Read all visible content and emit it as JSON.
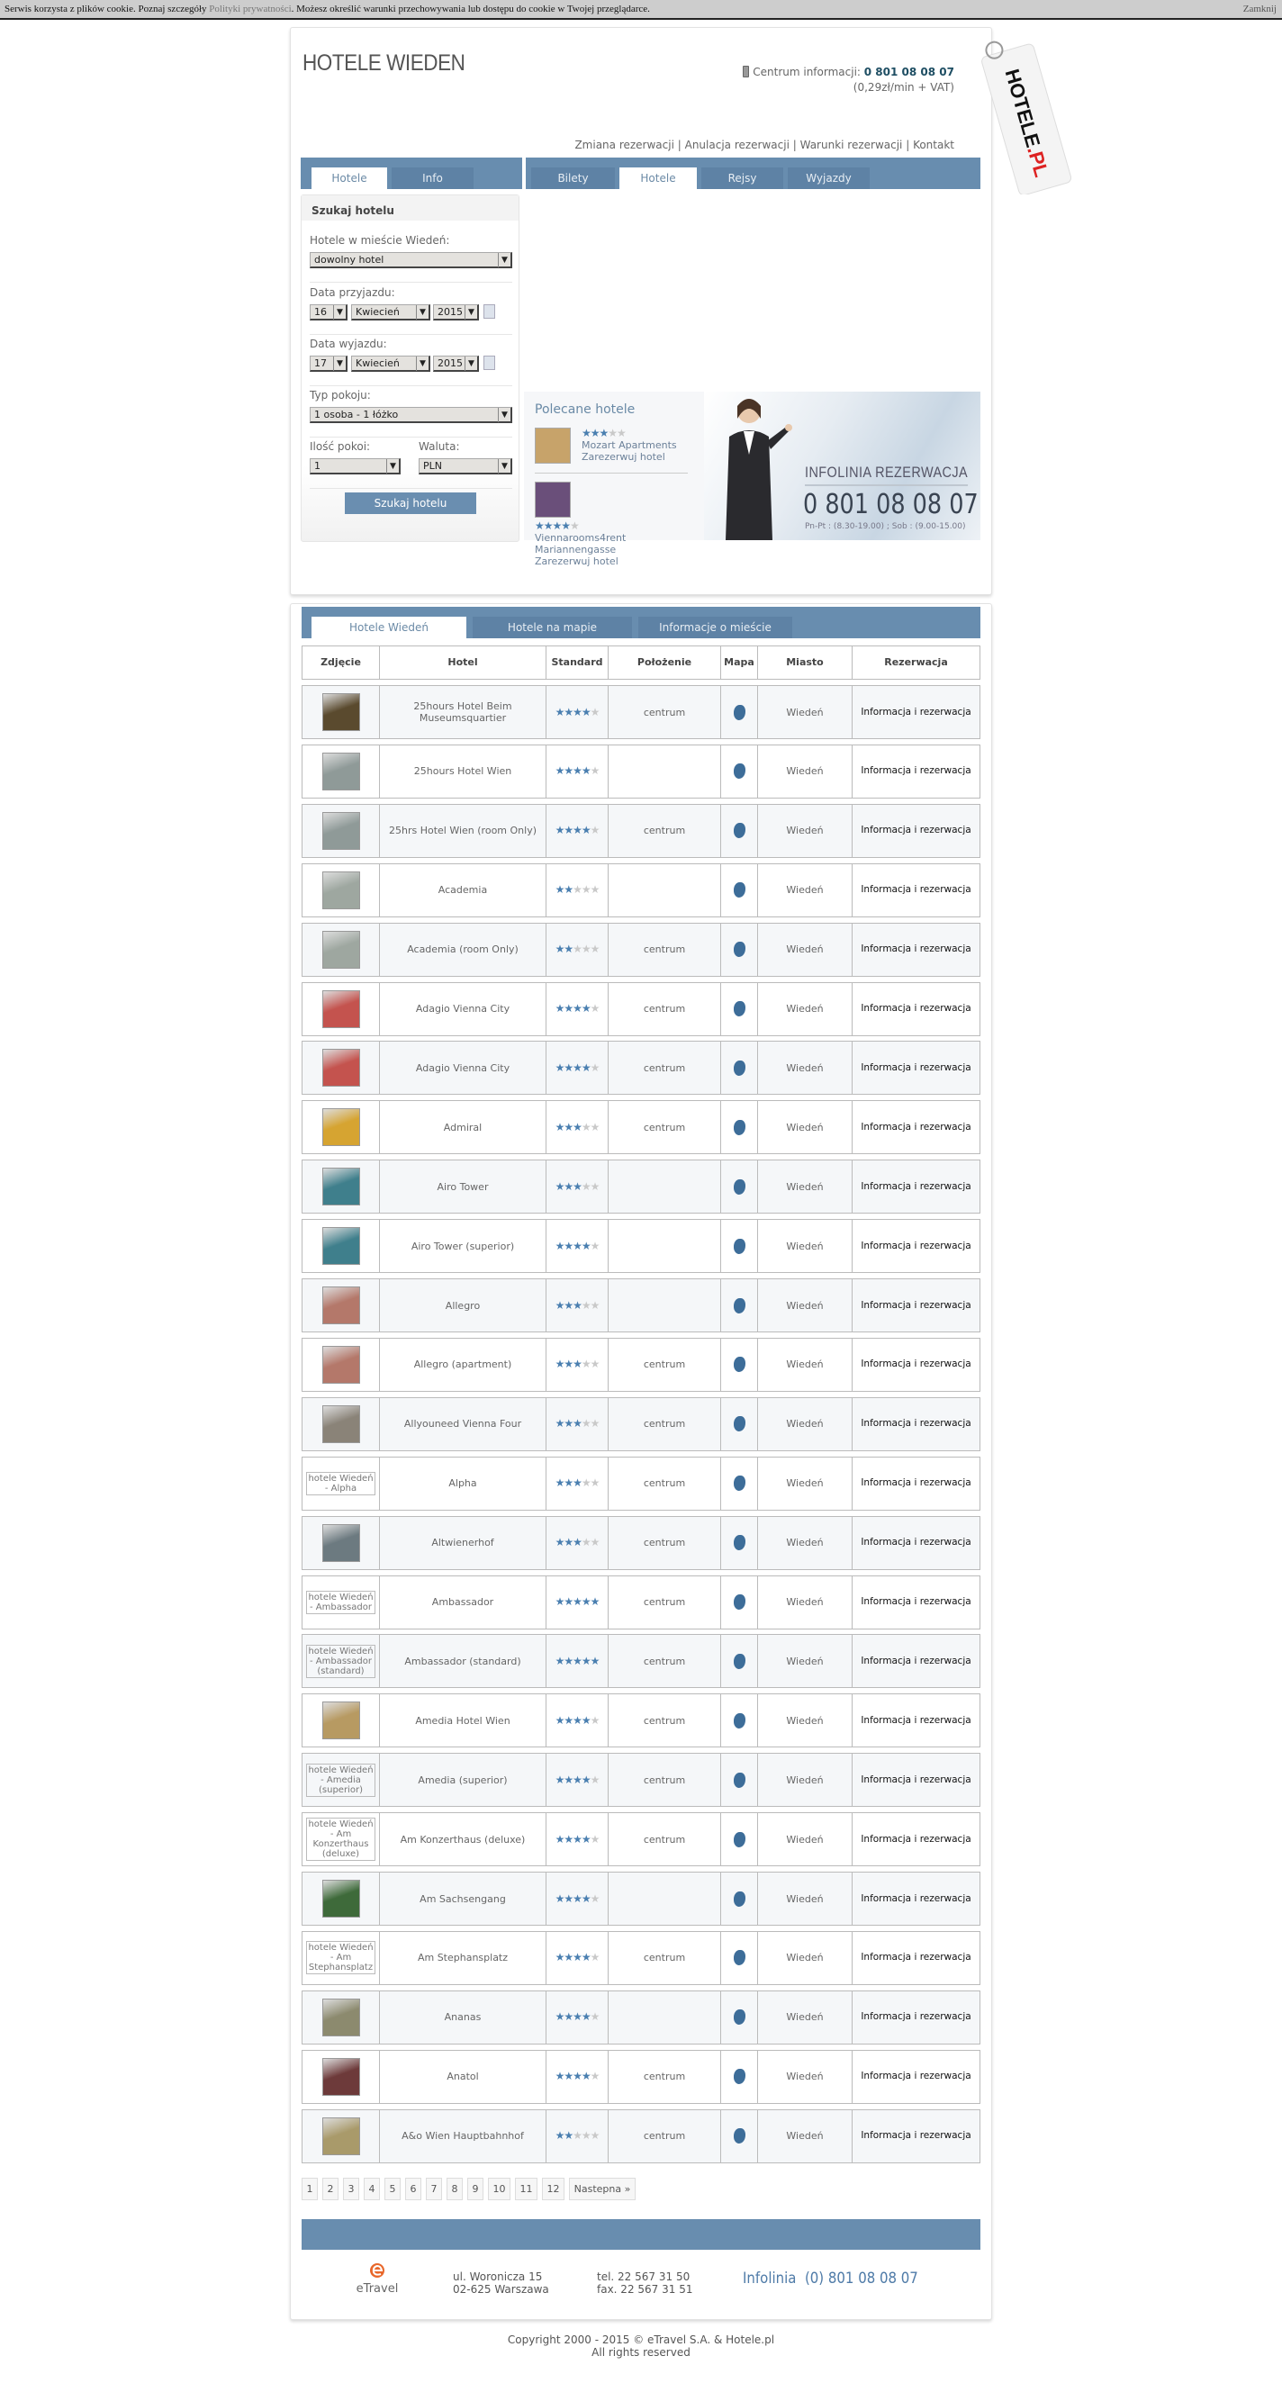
{
  "cookie": {
    "text_before": "Serwis korzysta z plików cookie. Poznaj szczegóły ",
    "link": "Polityki prywatności",
    "text_after": ". Możesz określić warunki przechowywania lub dostępu do cookie w Twojej przeglądarce.",
    "close": "Zamknij"
  },
  "header": {
    "title": "HOTELE WIEDEN",
    "info_label": "Centrum informacji:",
    "info_phone": "0 801 08 08 07",
    "info_price": "(0,29zł/min + VAT)",
    "logo_text": "HOTELE.PL",
    "icon": "phone-icon",
    "links": [
      "Zmiana rezerwacji",
      "Anulacja rezerwacji",
      "Warunki rezerwacji",
      "Kontakt"
    ]
  },
  "left_tabs": [
    {
      "label": "Hotele",
      "active": true
    },
    {
      "label": "Info",
      "active": false
    }
  ],
  "right_tabs": [
    {
      "label": "Bilety",
      "active": false
    },
    {
      "label": "Hotele",
      "active": true
    },
    {
      "label": "Rejsy",
      "active": false
    },
    {
      "label": "Wyjazdy",
      "active": false
    }
  ],
  "search": {
    "title": "Szukaj hotelu",
    "city_label": "Hotele w mieście Wiedeń:",
    "hotel_value": "dowolny hotel",
    "arrival_label": "Data przyjazdu:",
    "arrival": {
      "day": "16",
      "month": "Kwiecień",
      "year": "2015"
    },
    "departure_label": "Data wyjazdu:",
    "departure": {
      "day": "17",
      "month": "Kwiecień",
      "year": "2015"
    },
    "room_label": "Typ pokoju:",
    "room_value": "1 osoba - 1 łóżko",
    "rooms_label": "Ilość pokoi:",
    "rooms_value": "1",
    "currency_label": "Waluta:",
    "currency_value": "PLN",
    "button": "Szukaj hotelu"
  },
  "recommended": {
    "title": "Polecane hotele",
    "items": [
      {
        "stars": 3,
        "name": "Mozart Apartments",
        "link": "Zarezerwuj hotel"
      },
      {
        "stars": 4,
        "name": "Viennarooms4rent Mariannengasse",
        "link": "Zarezerwuj hotel"
      }
    ]
  },
  "banner": {
    "title": "INFOLINIA REZERWACJA",
    "phone": "0 801 08 08 07",
    "hours": "Pn-Pt : (8.30-19.00) ;  Sob : (9.00-15.00)"
  },
  "list_tabs": [
    {
      "label": "Hotele Wiedeń",
      "active": true
    },
    {
      "label": "Hotele na mapie",
      "active": false
    },
    {
      "label": "Informacje o mieście",
      "active": false
    }
  ],
  "table": {
    "headers": [
      "Zdjęcie",
      "Hotel",
      "Standard",
      "Położenie",
      "Mapa",
      "Miasto",
      "Rezerwacja"
    ],
    "reserve_label": "Informacja i rezerwacja",
    "city": "Wiedeń",
    "star_color": "#4a7fb0",
    "map_icon": "map-pin-icon",
    "rows": [
      {
        "name": "25hours Hotel Beim Museumsquartier",
        "stars": 4,
        "location": "centrum",
        "thumb": "#5a4a2e"
      },
      {
        "name": "25hours Hotel Wien",
        "stars": 4,
        "location": "",
        "thumb": "#8f9a98"
      },
      {
        "name": "25hrs Hotel Wien (room Only)",
        "stars": 4,
        "location": "centrum",
        "thumb": "#8f9a98"
      },
      {
        "name": "Academia",
        "stars": 2,
        "location": "",
        "thumb": "#9ea7a0"
      },
      {
        "name": "Academia (room Only)",
        "stars": 2,
        "location": "centrum",
        "thumb": "#9ea7a0"
      },
      {
        "name": "Adagio Vienna City",
        "stars": 4,
        "location": "centrum",
        "thumb": "#c4534e"
      },
      {
        "name": "Adagio Vienna City",
        "stars": 4,
        "location": "centrum",
        "thumb": "#c4534e"
      },
      {
        "name": "Admiral",
        "stars": 3,
        "location": "centrum",
        "thumb": "#d6a431"
      },
      {
        "name": "Airo Tower",
        "stars": 3,
        "location": "",
        "thumb": "#3f7f8c"
      },
      {
        "name": "Airo Tower (superior)",
        "stars": 4,
        "location": "",
        "thumb": "#3f7f8c"
      },
      {
        "name": "Allegro",
        "stars": 3,
        "location": "",
        "thumb": "#b4786a"
      },
      {
        "name": "Allegro (apartment)",
        "stars": 3,
        "location": "centrum",
        "thumb": "#b4786a"
      },
      {
        "name": "Allyouneed Vienna Four",
        "stars": 3,
        "location": "centrum",
        "thumb": "#8a8378"
      },
      {
        "name": "Alpha",
        "stars": 3,
        "location": "centrum",
        "alt": "hotele Wiedeń - Alpha"
      },
      {
        "name": "Altwienerhof",
        "stars": 3,
        "location": "centrum",
        "thumb": "#6c7a80"
      },
      {
        "name": "Ambassador",
        "stars": 5,
        "location": "centrum",
        "alt": "hotele Wiedeń - Ambassador"
      },
      {
        "name": "Ambassador (standard)",
        "stars": 5,
        "location": "centrum",
        "alt": "hotele Wiedeń - Ambassador (standard)"
      },
      {
        "name": "Amedia Hotel Wien",
        "stars": 4,
        "location": "centrum",
        "thumb": "#b79a62"
      },
      {
        "name": "Amedia (superior)",
        "stars": 4,
        "location": "centrum",
        "alt": "hotele Wiedeń - Amedia (superior)"
      },
      {
        "name": "Am Konzerthaus (deluxe)",
        "stars": 4,
        "location": "centrum",
        "alt": "hotele Wiedeń - Am Konzerthaus (deluxe)"
      },
      {
        "name": "Am Sachsengang",
        "stars": 4,
        "location": "",
        "thumb": "#3e6a3a"
      },
      {
        "name": "Am Stephansplatz",
        "stars": 4,
        "location": "centrum",
        "alt": "hotele Wiedeń - Am Stephansplatz"
      },
      {
        "name": "Ananas",
        "stars": 4,
        "location": "",
        "thumb": "#8c8a6e"
      },
      {
        "name": "Anatol",
        "stars": 4,
        "location": "centrum",
        "thumb": "#6d3a3a"
      },
      {
        "name": "A&o Wien Hauptbahnhof",
        "stars": 2,
        "location": "centrum",
        "thumb": "#a99a6a"
      }
    ]
  },
  "pagination": {
    "pages": [
      "1",
      "2",
      "3",
      "4",
      "5",
      "6",
      "7",
      "8",
      "9",
      "10",
      "11",
      "12"
    ],
    "next": "Nastepna »"
  },
  "footer": {
    "logo": "eTravel",
    "address1": "ul. Woronicza 15",
    "address2": "02-625 Warszawa",
    "tel": "tel. 22 567 31 50",
    "fax": "fax. 22 567 31 51",
    "infolinia": "Infolinia  (0) 801 08 08 07",
    "copyright": "Copyright 2000 - 2015 © eTravel S.A. & Hotele.pl",
    "rights": "All rights reserved"
  }
}
